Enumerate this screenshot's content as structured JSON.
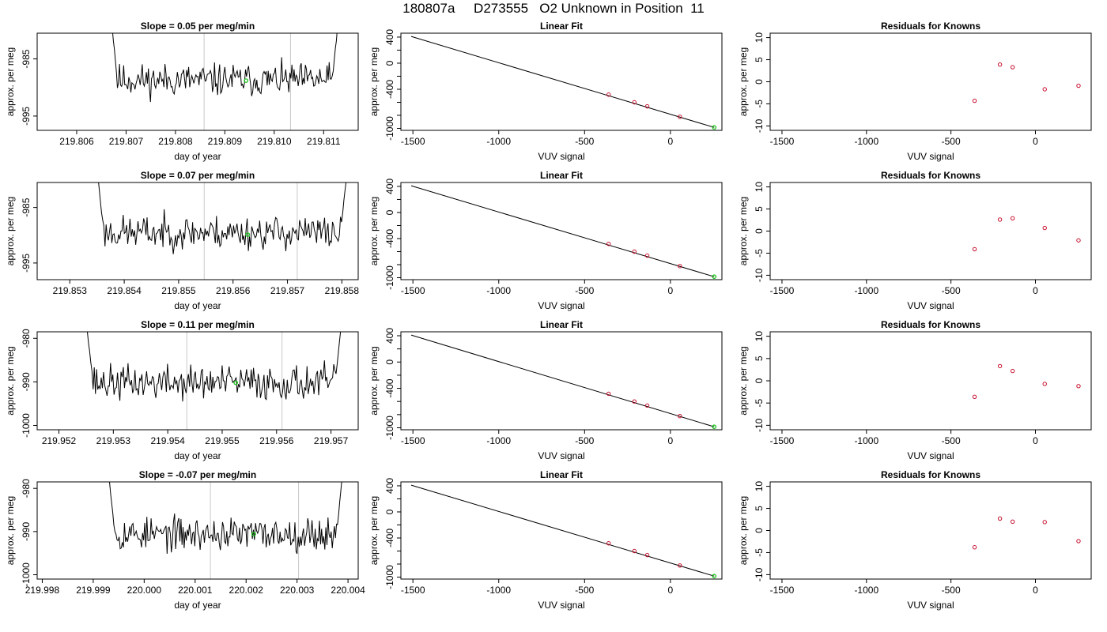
{
  "page": {
    "title": "180807a     D273555   O2 Unknown in Position  11"
  },
  "colors": {
    "trace": "#000000",
    "marker_lines": "#c8c8c8",
    "highlight_point": "#1ec81e",
    "known_points": "#c8102e"
  },
  "chart_data": [
    {
      "type": "line",
      "row": 1,
      "title": "Slope =  0.05  per meg/min",
      "xlabel": "day of year",
      "ylabel": "approx. per meg",
      "xlim": [
        219.8052,
        219.8117
      ],
      "ylim": [
        -997.5,
        -980.5
      ],
      "xticks": [
        "219.806",
        "219.807",
        "219.808",
        "219.809",
        "219.810",
        "219.811"
      ],
      "xtick_values": [
        219.806,
        219.807,
        219.808,
        219.809,
        219.81,
        219.811
      ],
      "yticks": [
        "-985",
        "-995"
      ],
      "ytick_values": [
        -985,
        -995
      ],
      "x_start": 219.8067,
      "x_end": 219.8113,
      "y_mean": -988.7,
      "y_noise": 1.4,
      "edge_high": -978,
      "seed": 11,
      "vlines": [
        219.80858,
        219.81033
      ],
      "highlight": {
        "x": 219.80943,
        "y": -988.8
      }
    },
    {
      "type": "scatter",
      "row": 1,
      "title": "Linear Fit",
      "xlabel": "VUV signal",
      "ylabel": "approx. per meg",
      "xlim": [
        -1570,
        300
      ],
      "ylim": [
        -1030,
        460
      ],
      "xticks": [
        "-1500",
        "-1000",
        "-500",
        "0"
      ],
      "xtick_values": [
        -1500,
        -1000,
        -500,
        0
      ],
      "yticks": [
        "400",
        "0",
        "-400",
        "-1000"
      ],
      "ytick_values": [
        400,
        0,
        -400,
        -1000
      ],
      "yminor": [
        200,
        -200,
        -600,
        -800
      ],
      "line": {
        "x": [
          -1510,
          255
        ],
        "y": [
          410,
          -985
        ]
      },
      "points": {
        "x": [
          -360,
          -210,
          -135,
          55
        ],
        "y": [
          -482,
          -600,
          -662,
          -822
        ]
      },
      "highlight": {
        "x": 255,
        "y": -985
      }
    },
    {
      "type": "scatter",
      "row": 1,
      "title": "Residuals for Knowns",
      "xlabel": "VUV signal",
      "ylabel": "approx. per meg",
      "xlim": [
        -1570,
        330
      ],
      "ylim": [
        -11,
        11
      ],
      "xticks": [
        "-1500",
        "-1000",
        "-500",
        "0"
      ],
      "xtick_values": [
        -1500,
        -1000,
        -500,
        0
      ],
      "yticks": [
        "10",
        "5",
        "0",
        "-5",
        "-10"
      ],
      "ytick_values": [
        10,
        5,
        0,
        -5,
        -10
      ],
      "points": {
        "x": [
          -360,
          -210,
          -135,
          55,
          255
        ],
        "y": [
          -4.3,
          3.9,
          3.3,
          -1.7,
          -0.9
        ]
      }
    },
    {
      "type": "line",
      "row": 2,
      "title": "Slope =  0.07  per meg/min",
      "xlabel": "day of year",
      "ylabel": "approx. per meg",
      "xlim": [
        219.8524,
        219.8583
      ],
      "ylim": [
        -998,
        -980.5
      ],
      "xticks": [
        "219.853",
        "219.854",
        "219.855",
        "219.856",
        "219.857",
        "219.858"
      ],
      "xtick_values": [
        219.853,
        219.854,
        219.855,
        219.856,
        219.857,
        219.858
      ],
      "yticks": [
        "-985",
        "-995"
      ],
      "ytick_values": [
        -985,
        -995
      ],
      "x_start": 219.8535,
      "x_end": 219.8581,
      "y_mean": -989.5,
      "y_noise": 1.5,
      "edge_high": -978,
      "seed": 23,
      "vlines": [
        219.85547,
        219.85718
      ],
      "highlight": {
        "x": 219.85627,
        "y": -989.9
      }
    },
    {
      "type": "scatter",
      "row": 2,
      "title": "Linear Fit",
      "xlabel": "VUV signal",
      "ylabel": "approx. per meg",
      "xlim": [
        -1570,
        300
      ],
      "ylim": [
        -1030,
        460
      ],
      "xticks": [
        "-1500",
        "-1000",
        "-500",
        "0"
      ],
      "xtick_values": [
        -1500,
        -1000,
        -500,
        0
      ],
      "yticks": [
        "400",
        "0",
        "-400",
        "-1000"
      ],
      "ytick_values": [
        400,
        0,
        -400,
        -1000
      ],
      "yminor": [
        200,
        -200,
        -600,
        -800
      ],
      "line": {
        "x": [
          -1510,
          255
        ],
        "y": [
          410,
          -985
        ]
      },
      "points": {
        "x": [
          -360,
          -210,
          -135,
          55
        ],
        "y": [
          -482,
          -600,
          -662,
          -822
        ]
      },
      "highlight": {
        "x": 255,
        "y": -985
      }
    },
    {
      "type": "scatter",
      "row": 2,
      "title": "Residuals for Knowns",
      "xlabel": "VUV signal",
      "ylabel": "approx. per meg",
      "xlim": [
        -1570,
        330
      ],
      "ylim": [
        -11,
        11
      ],
      "xticks": [
        "-1500",
        "-1000",
        "-500",
        "0"
      ],
      "xtick_values": [
        -1500,
        -1000,
        -500,
        0
      ],
      "yticks": [
        "10",
        "5",
        "0",
        "-5",
        "-10"
      ],
      "ytick_values": [
        10,
        5,
        0,
        -5,
        -10
      ],
      "points": {
        "x": [
          -360,
          -210,
          -135,
          55,
          255
        ],
        "y": [
          -4.1,
          2.6,
          2.9,
          0.7,
          -2.1
        ]
      }
    },
    {
      "type": "line",
      "row": 3,
      "title": "Slope =  0.11  per meg/min",
      "xlabel": "day of year",
      "ylabel": "approx. per meg",
      "xlim": [
        219.9516,
        219.9575
      ],
      "ylim": [
        -1001,
        -978.5
      ],
      "xticks": [
        "219.952",
        "219.953",
        "219.954",
        "219.955",
        "219.956",
        "219.957"
      ],
      "xtick_values": [
        219.952,
        219.953,
        219.954,
        219.955,
        219.956,
        219.957
      ],
      "yticks": [
        "-980",
        "-990",
        "-1000"
      ],
      "ytick_values": [
        -980,
        -990,
        -1000
      ],
      "x_start": 219.9525,
      "x_end": 219.9572,
      "y_mean": -990.2,
      "y_noise": 2.0,
      "edge_high": -976,
      "seed": 37,
      "vlines": [
        219.95435,
        219.9561
      ],
      "highlight": {
        "x": 219.95525,
        "y": -990.2
      }
    },
    {
      "type": "scatter",
      "row": 3,
      "title": "Linear Fit",
      "xlabel": "VUV signal",
      "ylabel": "approx. per meg",
      "xlim": [
        -1570,
        300
      ],
      "ylim": [
        -1030,
        460
      ],
      "xticks": [
        "-1500",
        "-1000",
        "-500",
        "0"
      ],
      "xtick_values": [
        -1500,
        -1000,
        -500,
        0
      ],
      "yticks": [
        "400",
        "0",
        "-400",
        "-1000"
      ],
      "ytick_values": [
        400,
        0,
        -400,
        -1000
      ],
      "yminor": [
        200,
        -200,
        -600,
        -800
      ],
      "line": {
        "x": [
          -1510,
          255
        ],
        "y": [
          410,
          -985
        ]
      },
      "points": {
        "x": [
          -360,
          -210,
          -135,
          55
        ],
        "y": [
          -482,
          -600,
          -662,
          -822
        ]
      },
      "highlight": {
        "x": 255,
        "y": -985
      }
    },
    {
      "type": "scatter",
      "row": 3,
      "title": "Residuals for Knowns",
      "xlabel": "VUV signal",
      "ylabel": "approx. per meg",
      "xlim": [
        -1570,
        330
      ],
      "ylim": [
        -11,
        11
      ],
      "xticks": [
        "-1500",
        "-1000",
        "-500",
        "0"
      ],
      "xtick_values": [
        -1500,
        -1000,
        -500,
        0
      ],
      "yticks": [
        "10",
        "5",
        "0",
        "-5",
        "-10"
      ],
      "ytick_values": [
        10,
        5,
        0,
        -5,
        -10
      ],
      "points": {
        "x": [
          -360,
          -210,
          -135,
          55,
          255
        ],
        "y": [
          -3.6,
          3.3,
          2.2,
          -0.7,
          -1.2
        ]
      }
    },
    {
      "type": "line",
      "row": 4,
      "title": "Slope =  -0.07  per meg/min",
      "xlabel": "day of year",
      "ylabel": "approx. per meg",
      "xlim": [
        219.9979,
        220.0042
      ],
      "ylim": [
        -1001,
        -978.5
      ],
      "xticks": [
        "219.998",
        "219.999",
        "220.000",
        "220.001",
        "220.002",
        "220.003",
        "220.004"
      ],
      "xtick_values": [
        219.998,
        219.999,
        220.0,
        220.001,
        220.002,
        220.003,
        220.004
      ],
      "yticks": [
        "-980",
        "-990",
        "-1000"
      ],
      "ytick_values": [
        -980,
        -990,
        -1000
      ],
      "x_start": 219.9993,
      "x_end": 220.0039,
      "y_mean": -990.6,
      "y_noise": 1.9,
      "edge_high": -976,
      "seed": 53,
      "vlines": [
        220.0013,
        220.00303
      ],
      "highlight": {
        "x": 220.00215,
        "y": -990.6
      }
    },
    {
      "type": "scatter",
      "row": 4,
      "title": "Linear Fit",
      "xlabel": "VUV signal",
      "ylabel": "approx. per meg",
      "xlim": [
        -1570,
        300
      ],
      "ylim": [
        -1030,
        460
      ],
      "xticks": [
        "-1500",
        "-1000",
        "-500",
        "0"
      ],
      "xtick_values": [
        -1500,
        -1000,
        -500,
        0
      ],
      "yticks": [
        "400",
        "0",
        "-400",
        "-1000"
      ],
      "ytick_values": [
        400,
        0,
        -400,
        -1000
      ],
      "yminor": [
        200,
        -200,
        -600,
        -800
      ],
      "line": {
        "x": [
          -1510,
          255
        ],
        "y": [
          410,
          -985
        ]
      },
      "points": {
        "x": [
          -360,
          -210,
          -135,
          55
        ],
        "y": [
          -482,
          -600,
          -662,
          -822
        ]
      },
      "highlight": {
        "x": 255,
        "y": -985
      }
    },
    {
      "type": "scatter",
      "row": 4,
      "title": "Residuals for Knowns",
      "xlabel": "VUV signal",
      "ylabel": "approx. per meg",
      "xlim": [
        -1570,
        330
      ],
      "ylim": [
        -11,
        11
      ],
      "xticks": [
        "-1500",
        "-1000",
        "-500",
        "0"
      ],
      "xtick_values": [
        -1500,
        -1000,
        -500,
        0
      ],
      "yticks": [
        "10",
        "5",
        "0",
        "-5",
        "-10"
      ],
      "ytick_values": [
        10,
        5,
        0,
        -5,
        -10
      ],
      "points": {
        "x": [
          -360,
          -210,
          -135,
          55,
          255
        ],
        "y": [
          -3.8,
          2.7,
          2.0,
          1.9,
          -2.4
        ]
      }
    }
  ]
}
